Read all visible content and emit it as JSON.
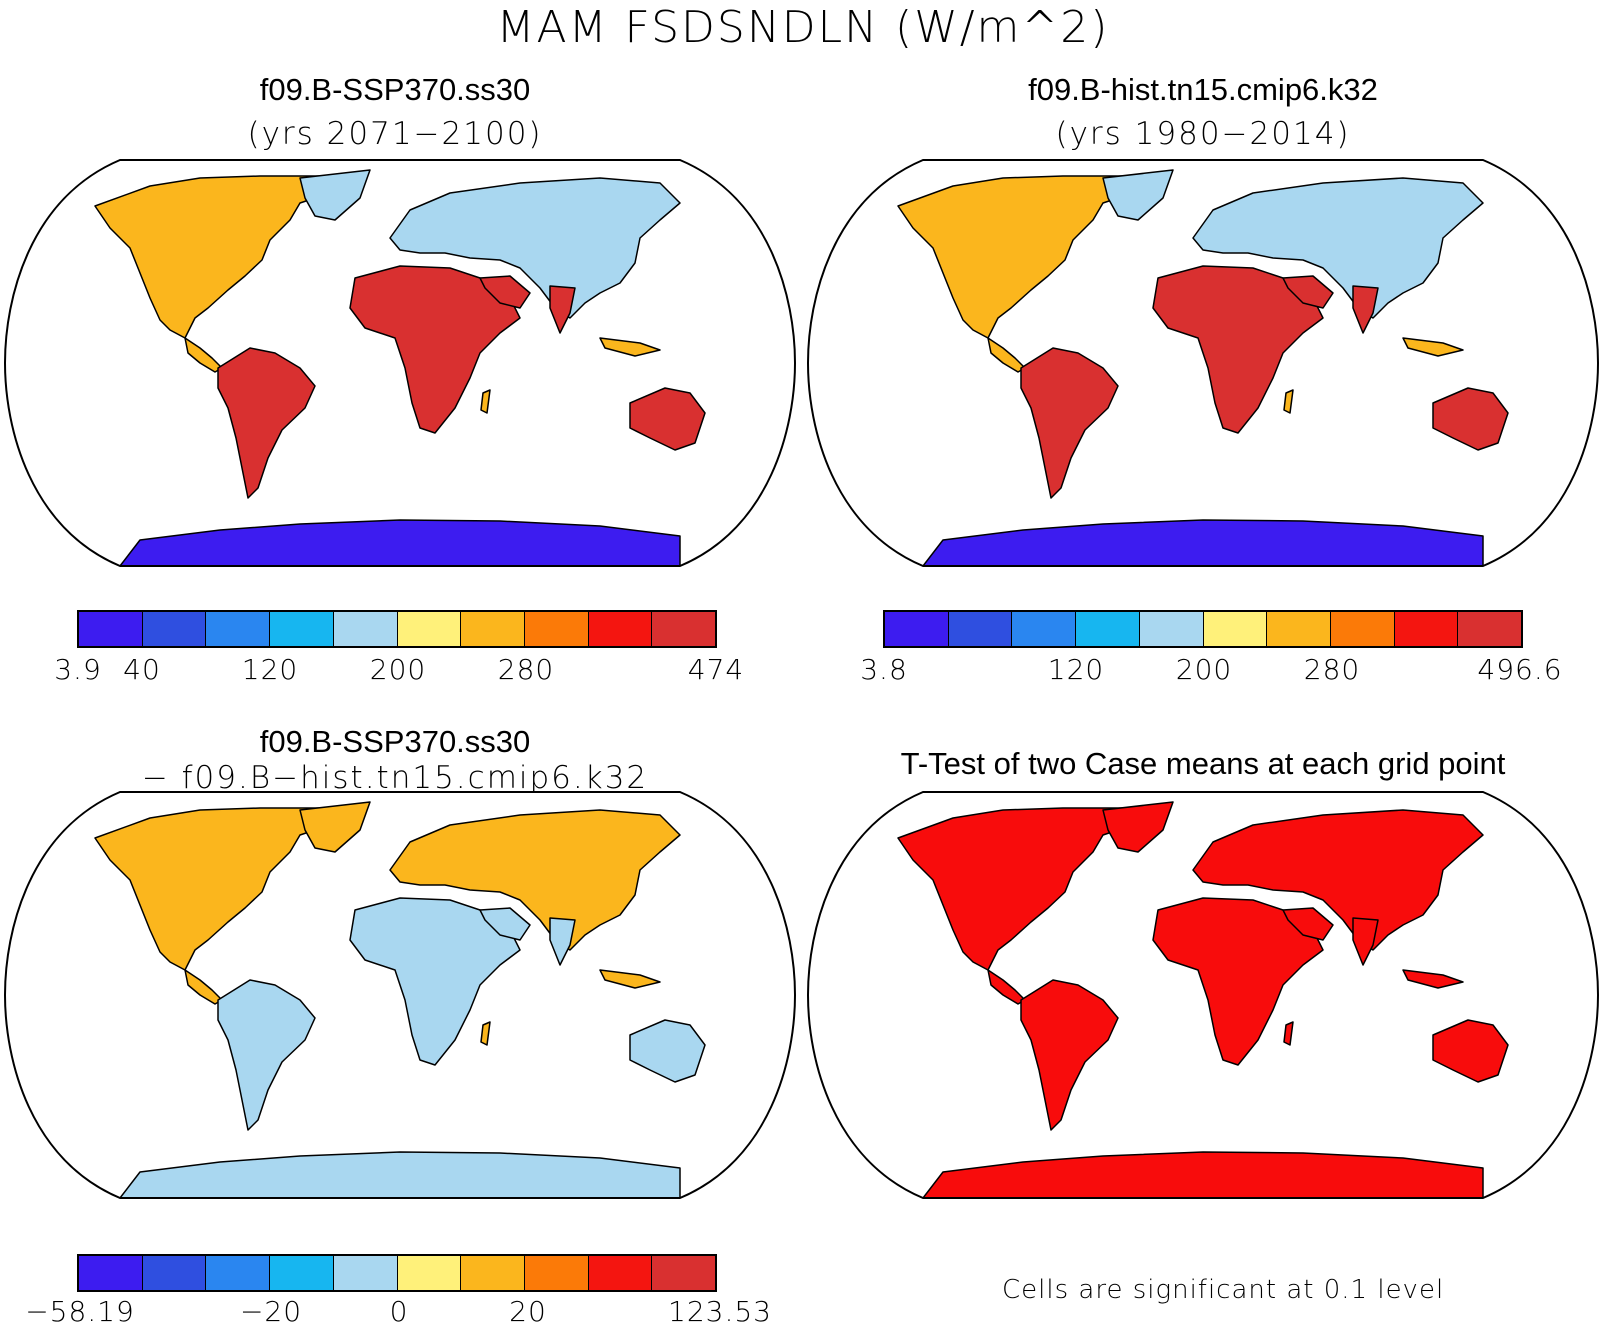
{
  "figure": {
    "title": "MAM FSDSNDLN (W/m^2)"
  },
  "palette": [
    "#3d1cf0",
    "#2f4fe0",
    "#2a86f0",
    "#17b6f0",
    "#a9d7f0",
    "#fff17a",
    "#fbb61d",
    "#fb7a08",
    "#f41510",
    "#d93030"
  ],
  "panels": [
    {
      "id": "ssp370",
      "title": "f09.B-SSP370.ss30",
      "subtitle": "(yrs 2071−2100)",
      "colorbar_labels": [
        "3.9",
        "40",
        "120",
        "200",
        "280",
        "474"
      ]
    },
    {
      "id": "hist",
      "title": "f09.B-hist.tn15.cmip6.k32",
      "subtitle": "(yrs 1980−2014)",
      "colorbar_labels": [
        "3.8",
        "120",
        "200",
        "280",
        "496.6"
      ]
    },
    {
      "id": "diff",
      "title": "f09.B-SSP370.ss30",
      "subtitle": "− f09.B−hist.tn15.cmip6.k32",
      "colorbar_labels": [
        "−58.19",
        "−20",
        "0",
        "20",
        "123.53"
      ]
    },
    {
      "id": "ttest",
      "title": "T-Test of two Case means at each grid point",
      "significance_color": "#f80c0c",
      "note": "Cells are significant at 0.1 level"
    }
  ]
}
